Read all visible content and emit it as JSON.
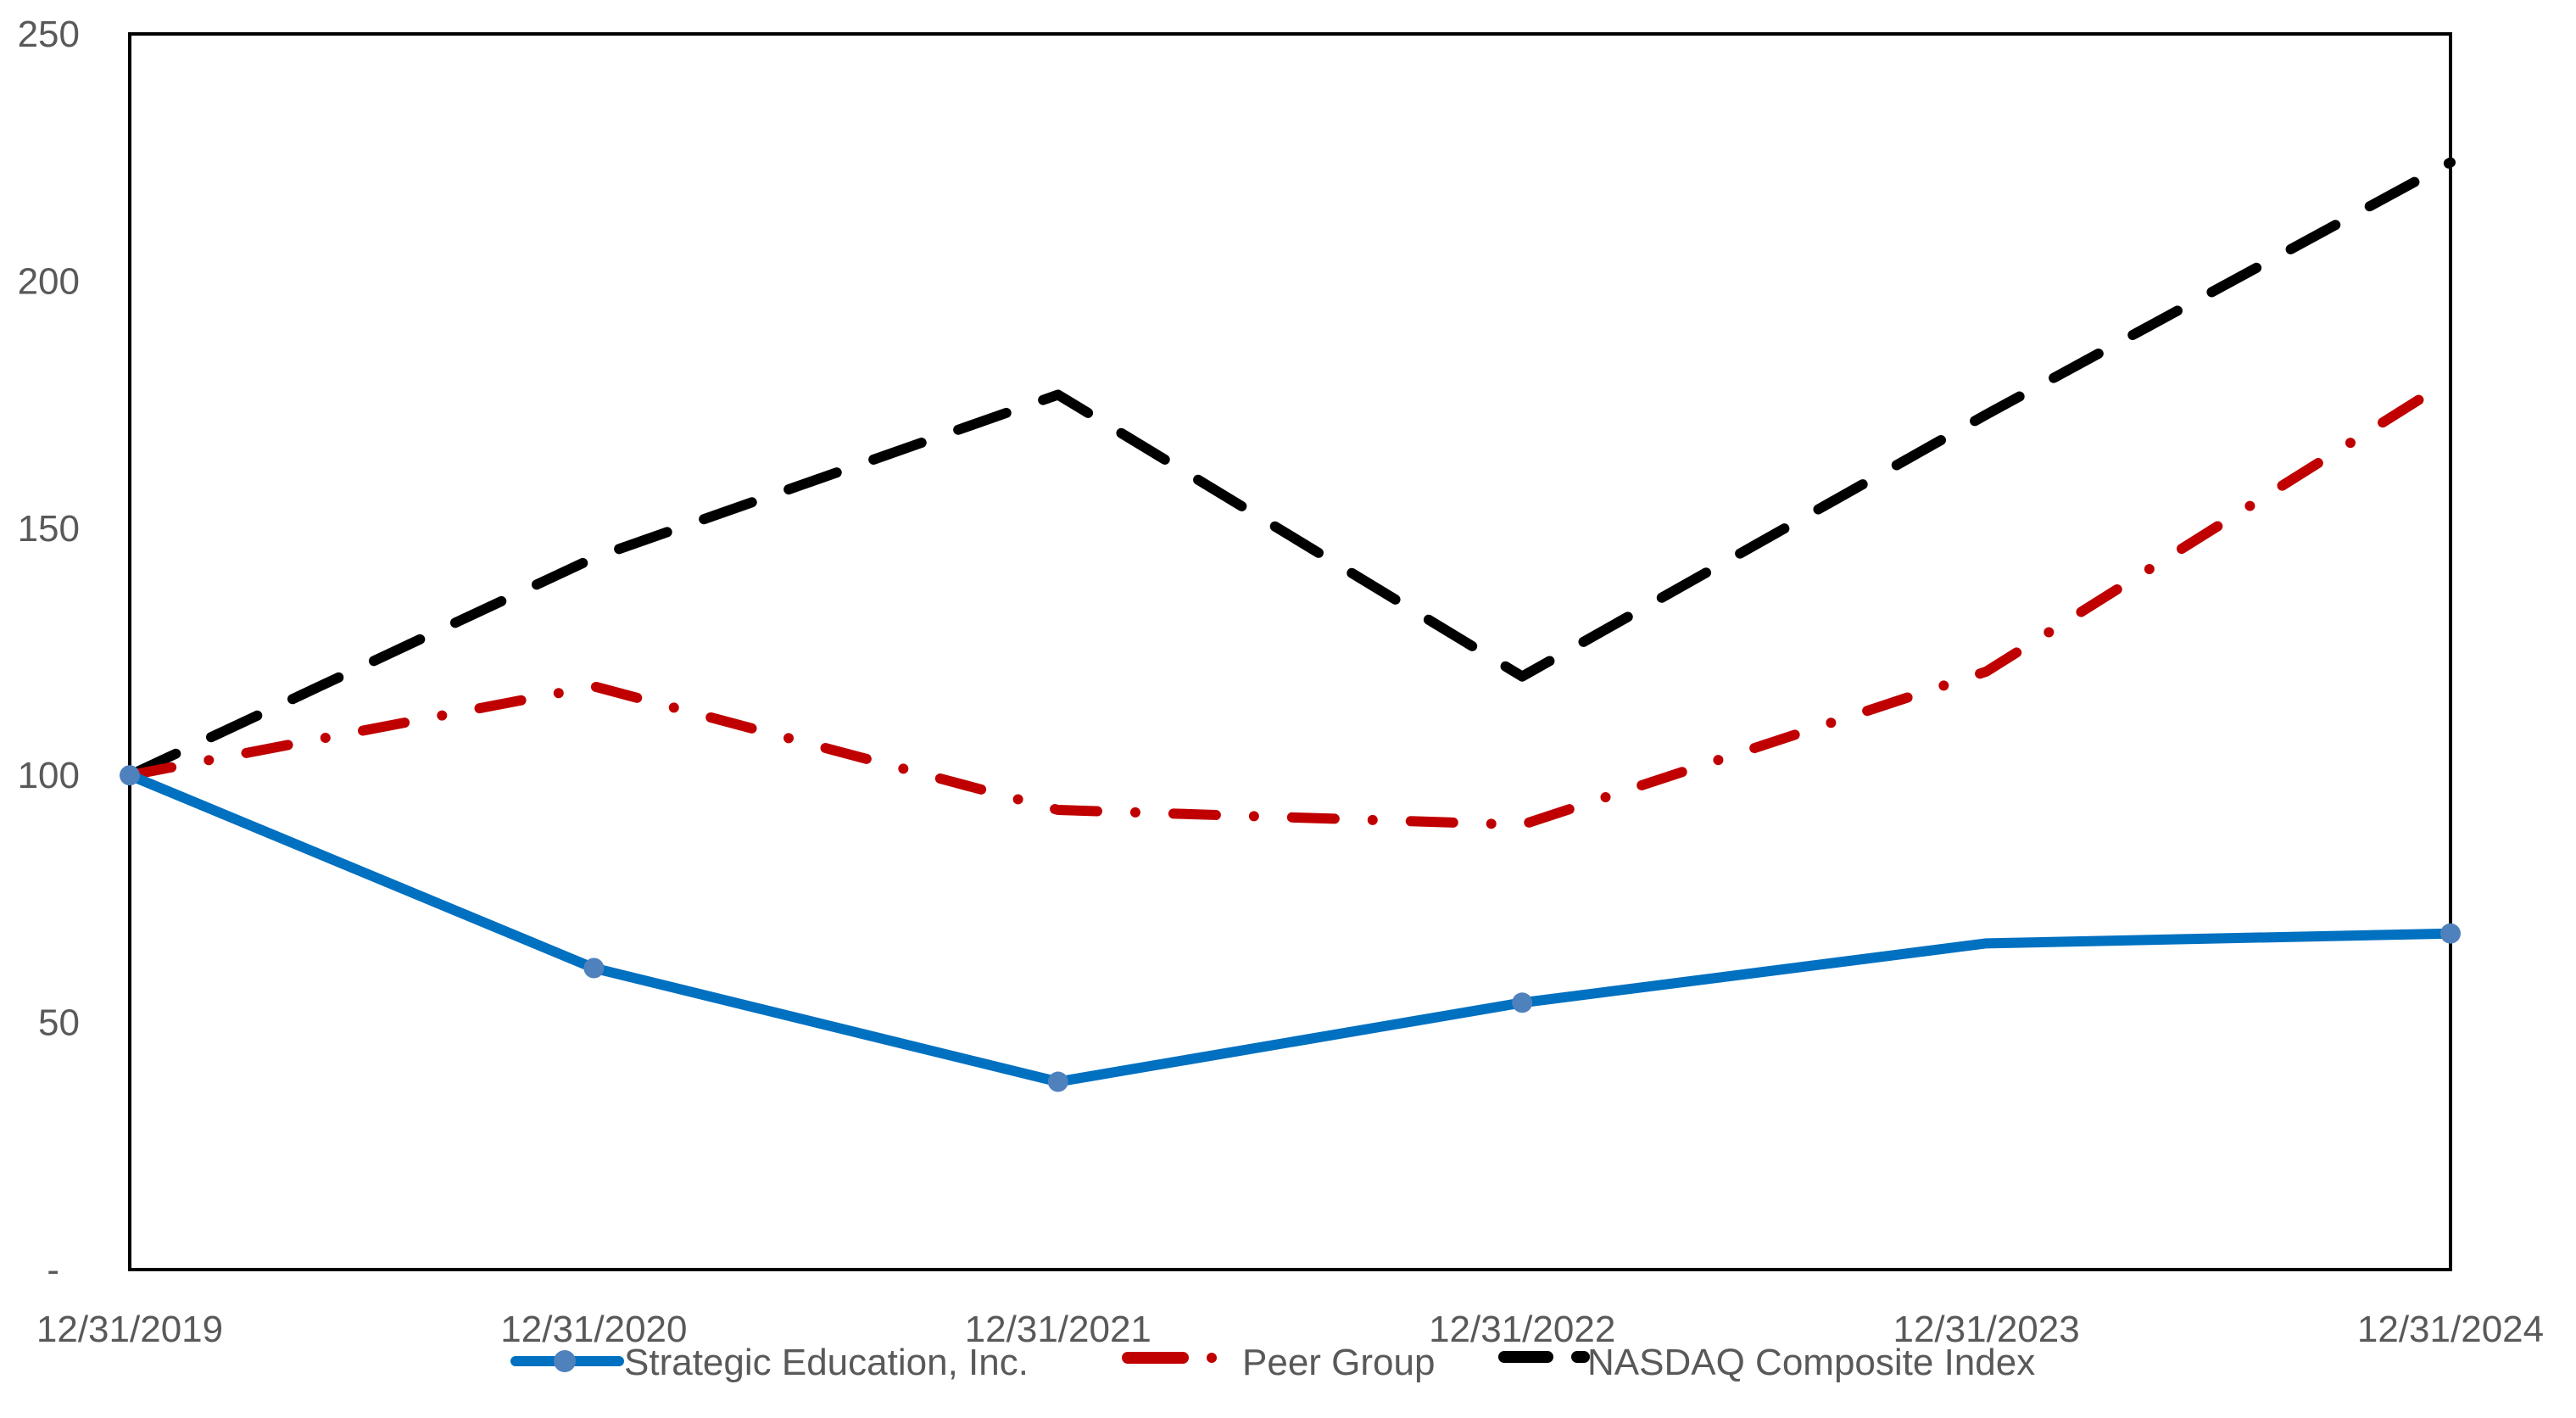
{
  "chart_data": {
    "type": "line",
    "title": "",
    "xlabel": "",
    "ylabel": "",
    "categories": [
      "12/31/2019",
      "12/31/2020",
      "12/31/2021",
      "12/31/2022",
      "12/31/2023",
      "12/31/2024"
    ],
    "y_ticks": [
      "-",
      "50",
      "100",
      "150",
      "200",
      "250"
    ],
    "y_tick_values": [
      0,
      50,
      100,
      150,
      200,
      250
    ],
    "ylim": [
      0,
      250
    ],
    "grid": false,
    "legend_position": "bottom",
    "series": [
      {
        "name": "Strategic Education, Inc.",
        "values": [
          100,
          61,
          38,
          54,
          66,
          68
        ],
        "color": "#0070C0",
        "marker_color": "#4F81BD",
        "style": "solid-with-markers"
      },
      {
        "name": "Peer Group",
        "values": [
          100,
          118,
          93,
          90,
          121,
          180
        ],
        "color": "#C00000",
        "style": "dash-dot"
      },
      {
        "name": "NASDAQ Composite Index",
        "values": [
          100,
          144,
          177,
          120,
          173,
          224
        ],
        "color": "#000000",
        "style": "dashed"
      }
    ]
  },
  "legend": {
    "items": [
      {
        "label": "Strategic Education, Inc."
      },
      {
        "label": "Peer Group"
      },
      {
        "label": "NASDAQ Composite Index"
      }
    ]
  }
}
